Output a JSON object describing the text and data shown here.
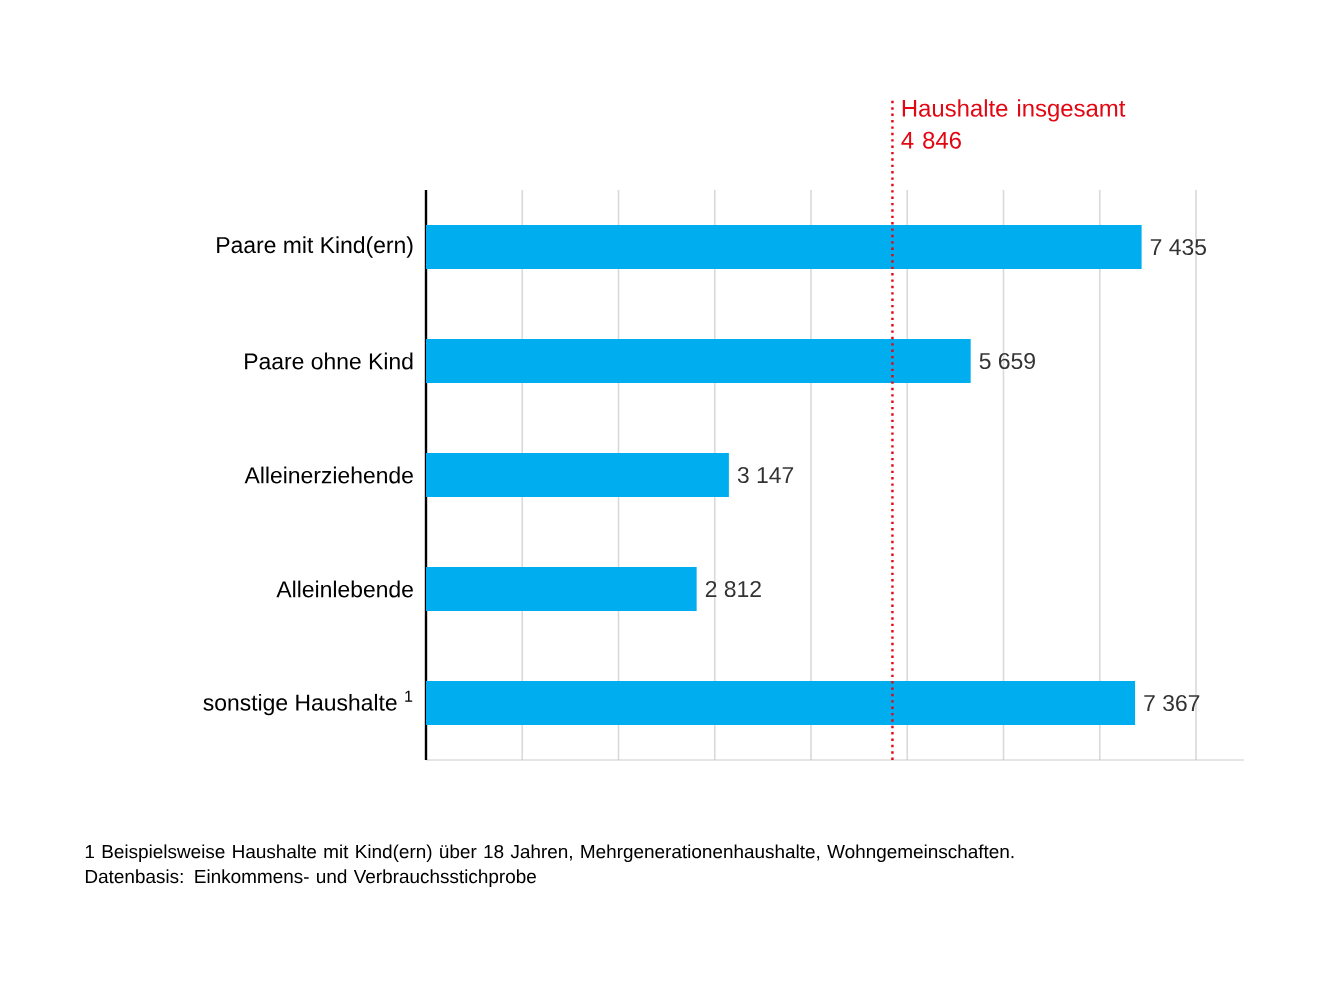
{
  "chart_data": {
    "type": "bar",
    "orientation": "horizontal",
    "categories": [
      "Paare mit Kind(ern)",
      "Paare ohne Kind",
      "Alleinerziehende",
      "Alleinlebende",
      "sonstige Haushalte $^{1}$"
    ],
    "values": [
      7435,
      5659,
      3147,
      2812,
      7367
    ],
    "value_labels": [
      "7 435",
      "5 659",
      "3 147",
      "2 812",
      "7 367"
    ],
    "color": "#00aeef",
    "xlim": [
      0,
      8000
    ],
    "xticks": [
      {
        "value": 0,
        "label": null
      },
      {
        "value": 1000,
        "label": null
      },
      {
        "value": 2000,
        "label": null
      },
      {
        "value": 3000,
        "label": null
      },
      {
        "value": 4000,
        "label": null
      },
      {
        "value": 5000,
        "label": null
      },
      {
        "value": 6000,
        "label": null
      },
      {
        "value": 7000,
        "label": null
      },
      {
        "value": 8000,
        "label": null
      }
    ],
    "tick_labels": "y",
    "grid": "x",
    "ref_lines": [
      {
        "axis": "x",
        "value": 4846,
        "label": "Haushalte insgesamt 4 846",
        "color": "#e30613",
        "line_style": "dotted"
      }
    ],
    "annotations": [
      "1    Beispielsweise Haushalte mit Kind(ern) über 18 Jahren, Mehrgenerationenhaushalte, Wohngemeinschaften.",
      "Datenbasis: Einkommens- und Verbrauchsstichprobe"
    ]
  }
}
